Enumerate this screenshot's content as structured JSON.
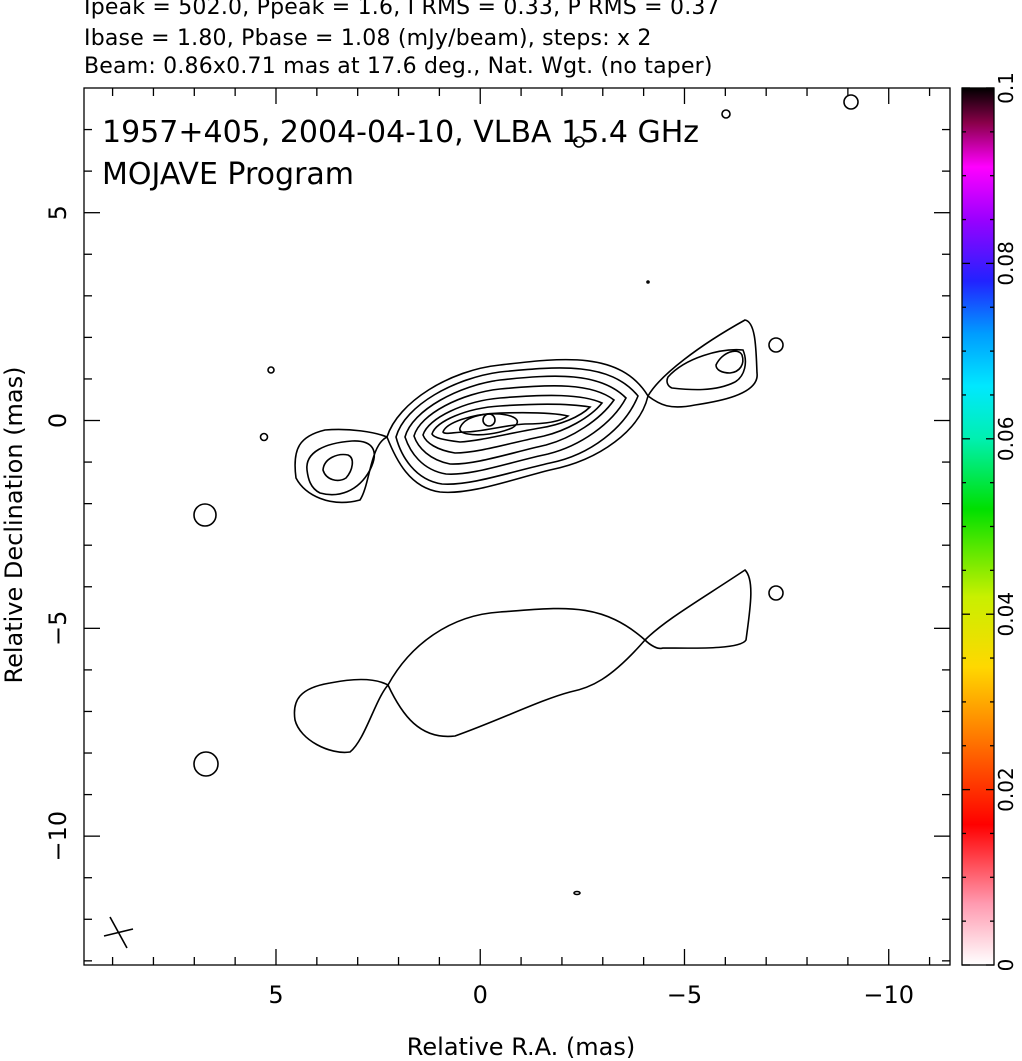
{
  "header": {
    "line1": "Ipeak = 502.0, Ppeak = 1.6, I RMS = 0.33, P RMS = 0.37",
    "line2": "Ibase = 1.80, Pbase = 1.08 (mJy/beam), steps: x 2",
    "line3": "Beam: 0.86x0.71 mas at 17.6 deg., Nat. Wgt. (no taper)"
  },
  "chart_data": {
    "type": "contour",
    "title_lines": [
      "1957+405, 2004-04-10, VLBA 15.4 GHz",
      "MOJAVE Program"
    ],
    "xlabel": "Relative R.A. (mas)",
    "ylabel": "Relative Declination (mas)",
    "xlim": [
      9.7,
      -11.5
    ],
    "ylim": [
      -13.1,
      8.0
    ],
    "xticks": [
      5,
      0,
      -5,
      -10
    ],
    "yticks": [
      5,
      0,
      -5,
      -10
    ],
    "xtick_labels": [
      "5",
      "0",
      "−5",
      "−10"
    ],
    "ytick_labels": [
      "5",
      "0",
      "−5",
      "−10"
    ],
    "colorbar": {
      "min": 0,
      "max": 0.1,
      "ticks": [
        0,
        0.02,
        0.04,
        0.06,
        0.08,
        0.1
      ],
      "tick_labels": [
        "0",
        "0.02",
        "0.04",
        "0.06",
        "0.08",
        "0.1"
      ]
    },
    "total_intensity_image": {
      "description_center": [
        0,
        0
      ],
      "contour_levels_mJy_per_beam": [
        1.8,
        3.6,
        7.2,
        14.4,
        28.8,
        57.6,
        115.2,
        230.4,
        460.8
      ],
      "core": [
        0,
        0
      ],
      "jet_components": [
        [
          -5.8,
          1.2
        ],
        [
          3.6,
          -1.1
        ]
      ]
    },
    "polarization_image": {
      "offset_dec": -6.0,
      "contour_levels_mJy_per_beam": [
        1.08
      ]
    },
    "beam": {
      "major_mas": 0.86,
      "minor_mas": 0.71,
      "pa_deg": 17.6,
      "center": [
        9.0,
        -12.3
      ]
    }
  }
}
